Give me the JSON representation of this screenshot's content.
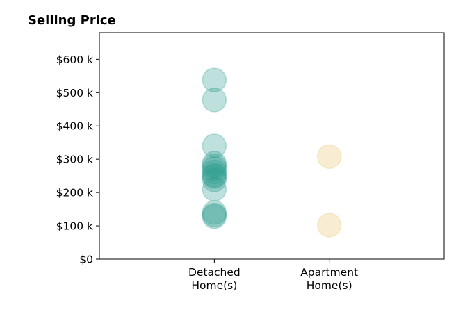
{
  "chart_data": {
    "type": "scatter",
    "title": "Selling Price",
    "xlabel": "",
    "ylabel": "",
    "categories": [
      [
        "Detached",
        "Home(s)"
      ],
      [
        "Apartment",
        "Home(s)"
      ]
    ],
    "x_range": [
      0,
      3
    ],
    "ylim": [
      0,
      680
    ],
    "y_ticks": [
      0,
      100,
      200,
      300,
      400,
      500,
      600
    ],
    "y_tick_labels": [
      "$0",
      "$100 k",
      "$200 k",
      "$300 k",
      "$400 k",
      "$500 k",
      "$600 k"
    ],
    "grid": false,
    "series": [
      {
        "category_index": 0,
        "color": "#2a9d8f",
        "opacity": 0.3,
        "values": [
          538,
          478,
          340,
          288,
          280,
          272,
          262,
          252,
          248,
          238,
          210,
          140,
          133,
          128
        ]
      },
      {
        "category_index": 1,
        "color": "#e9c46a",
        "opacity": 0.3,
        "values": [
          308,
          102
        ]
      }
    ]
  }
}
